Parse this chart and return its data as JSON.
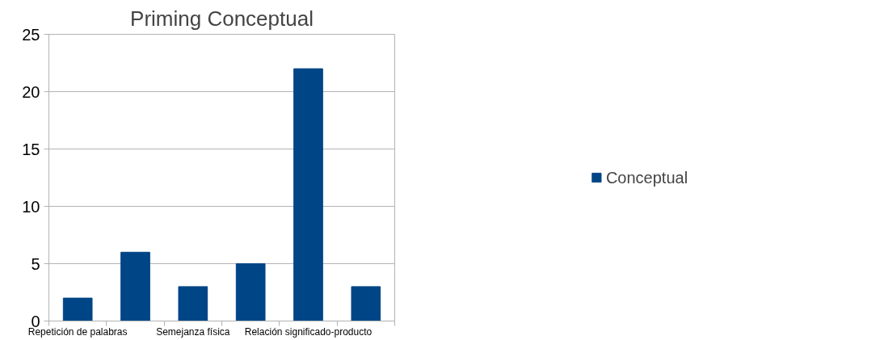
{
  "chart_data": {
    "type": "bar",
    "title": "Priming Conceptual",
    "categories": [
      "Repetición de palabras",
      null,
      "Semejanza física",
      null,
      "Relación significado-producto",
      null
    ],
    "series": [
      {
        "name": "Conceptual",
        "color": "#004586",
        "values": [
          2,
          6,
          3,
          5,
          22,
          3
        ]
      }
    ],
    "ylim": [
      0,
      25
    ],
    "yticks": [
      0,
      5,
      10,
      15,
      20,
      25
    ],
    "grid": "y",
    "legend": "right"
  }
}
